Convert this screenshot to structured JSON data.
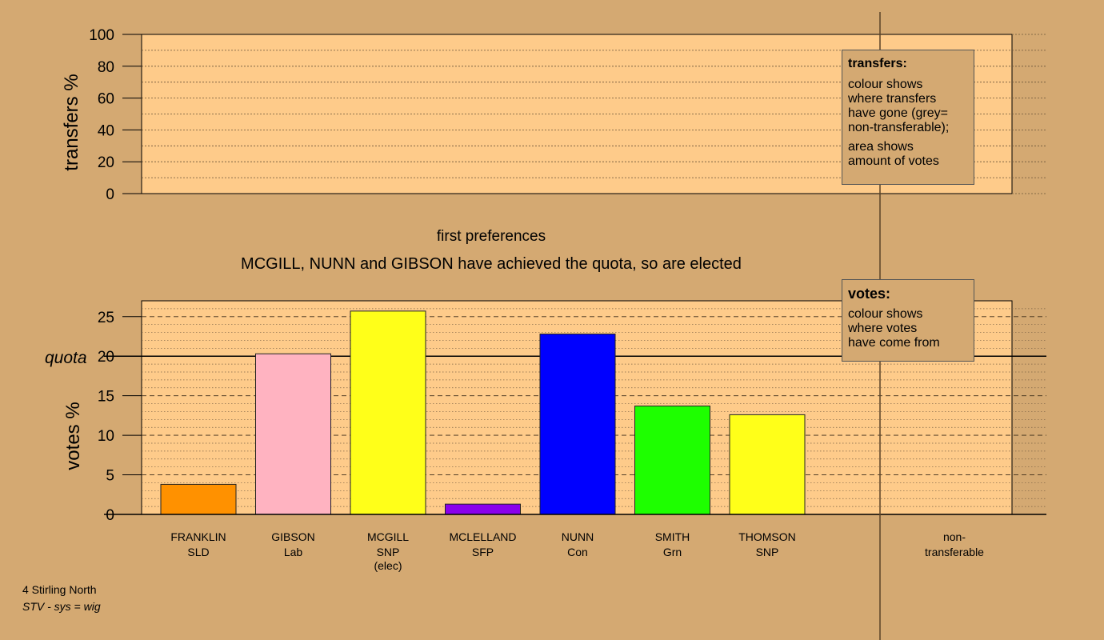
{
  "chart_data": [
    {
      "type": "bar",
      "title": "first preferences",
      "subtitle": "MCGILL, NUNN and GIBSON have achieved the quota, so are elected",
      "ylabel": "votes %",
      "ylim": [
        0,
        27
      ],
      "yticks": [
        "0",
        "5",
        "10",
        "15",
        "20",
        "25"
      ],
      "quota_label": "quota",
      "quota_value": 20,
      "categories": [
        {
          "name": "FRANKLIN",
          "party": "SLD",
          "note": "",
          "value": 3.8,
          "color": "#ff9100"
        },
        {
          "name": "GIBSON",
          "party": "Lab",
          "note": "",
          "value": 20.3,
          "color": "#ffb3c1"
        },
        {
          "name": "MCGILL",
          "party": "SNP",
          "note": "(elec)",
          "value": 25.7,
          "color": "#ffff19"
        },
        {
          "name": "MCLELLAND",
          "party": "SFP",
          "note": "",
          "value": 1.3,
          "color": "#8a00ec"
        },
        {
          "name": "NUNN",
          "party": "Con",
          "note": "",
          "value": 22.8,
          "color": "#0000ff"
        },
        {
          "name": "SMITH",
          "party": "Grn",
          "note": "",
          "value": 13.7,
          "color": "#1eff00"
        },
        {
          "name": "THOMSON",
          "party": "SNP",
          "note": "",
          "value": 12.6,
          "color": "#ffff19"
        }
      ],
      "extra_category": {
        "line1": "non-",
        "line2": "transferable"
      },
      "legend": {
        "title": "votes:",
        "lines": [
          "colour shows",
          "where votes",
          "have come from"
        ]
      }
    },
    {
      "type": "bar",
      "ylabel": "transfers %",
      "ylim": [
        0,
        100
      ],
      "yticks": [
        "0",
        "20",
        "40",
        "60",
        "80",
        "100"
      ],
      "values": [],
      "legend": {
        "title": "transfers:",
        "para1": [
          "colour shows",
          "where transfers",
          "have gone (grey=",
          "non-transferable);"
        ],
        "para2": [
          "area shows",
          "amount of votes"
        ]
      }
    }
  ],
  "footer": {
    "line1": "4 Stirling North",
    "line2": "STV - sys = wig"
  },
  "colors": {
    "background": "#d4a972",
    "plot_area": "#fecb8a",
    "axis": "#000000"
  }
}
